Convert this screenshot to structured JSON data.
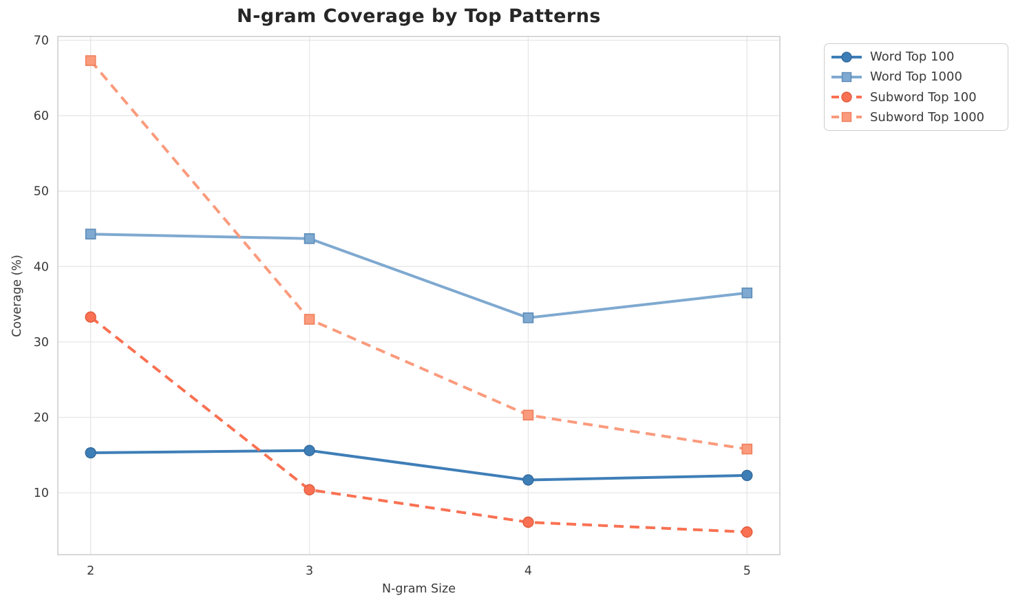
{
  "chart_data": {
    "type": "line",
    "title": "N-gram Coverage by Top Patterns",
    "xlabel": "N-gram Size",
    "ylabel": "Coverage (%)",
    "x": [
      2,
      3,
      4,
      5
    ],
    "xtick_labels": [
      "2",
      "3",
      "4",
      "5"
    ],
    "yticks": [
      10,
      20,
      30,
      40,
      50,
      60,
      70
    ],
    "ytick_labels": [
      "10",
      "20",
      "30",
      "40",
      "50",
      "60",
      "70"
    ],
    "xlim": [
      1.85,
      5.15
    ],
    "ylim": [
      1.8,
      70.5
    ],
    "grid": true,
    "legend_position": "outside-top-right",
    "series": [
      {
        "name": "Word Top 100",
        "values": [
          15.3,
          15.6,
          11.7,
          12.3
        ],
        "color": "#3E7EB7",
        "edge_color": "#33699c",
        "line_style": "solid",
        "marker": "circle"
      },
      {
        "name": "Word Top 1000",
        "values": [
          44.3,
          43.7,
          33.2,
          36.5
        ],
        "color": "#7FA9D0",
        "edge_color": "#5b8bb8",
        "line_style": "solid",
        "marker": "square"
      },
      {
        "name": "Subword Top 100",
        "values": [
          33.3,
          10.4,
          6.1,
          4.8
        ],
        "color": "#F97152",
        "edge_color": "#e05a3c",
        "line_style": "dashed",
        "marker": "circle"
      },
      {
        "name": "Subword Top 1000",
        "values": [
          67.3,
          33.0,
          20.3,
          15.8
        ],
        "color": "#FA9B7D",
        "edge_color": "#f07e5c",
        "line_style": "dashed",
        "marker": "square"
      }
    ],
    "theme": {
      "grid_color": "#e6e6e6",
      "spine_color": "#cccccc",
      "tick_label_color": "#3a3a3a",
      "title_color": "#262626",
      "background": "#ffffff"
    }
  }
}
